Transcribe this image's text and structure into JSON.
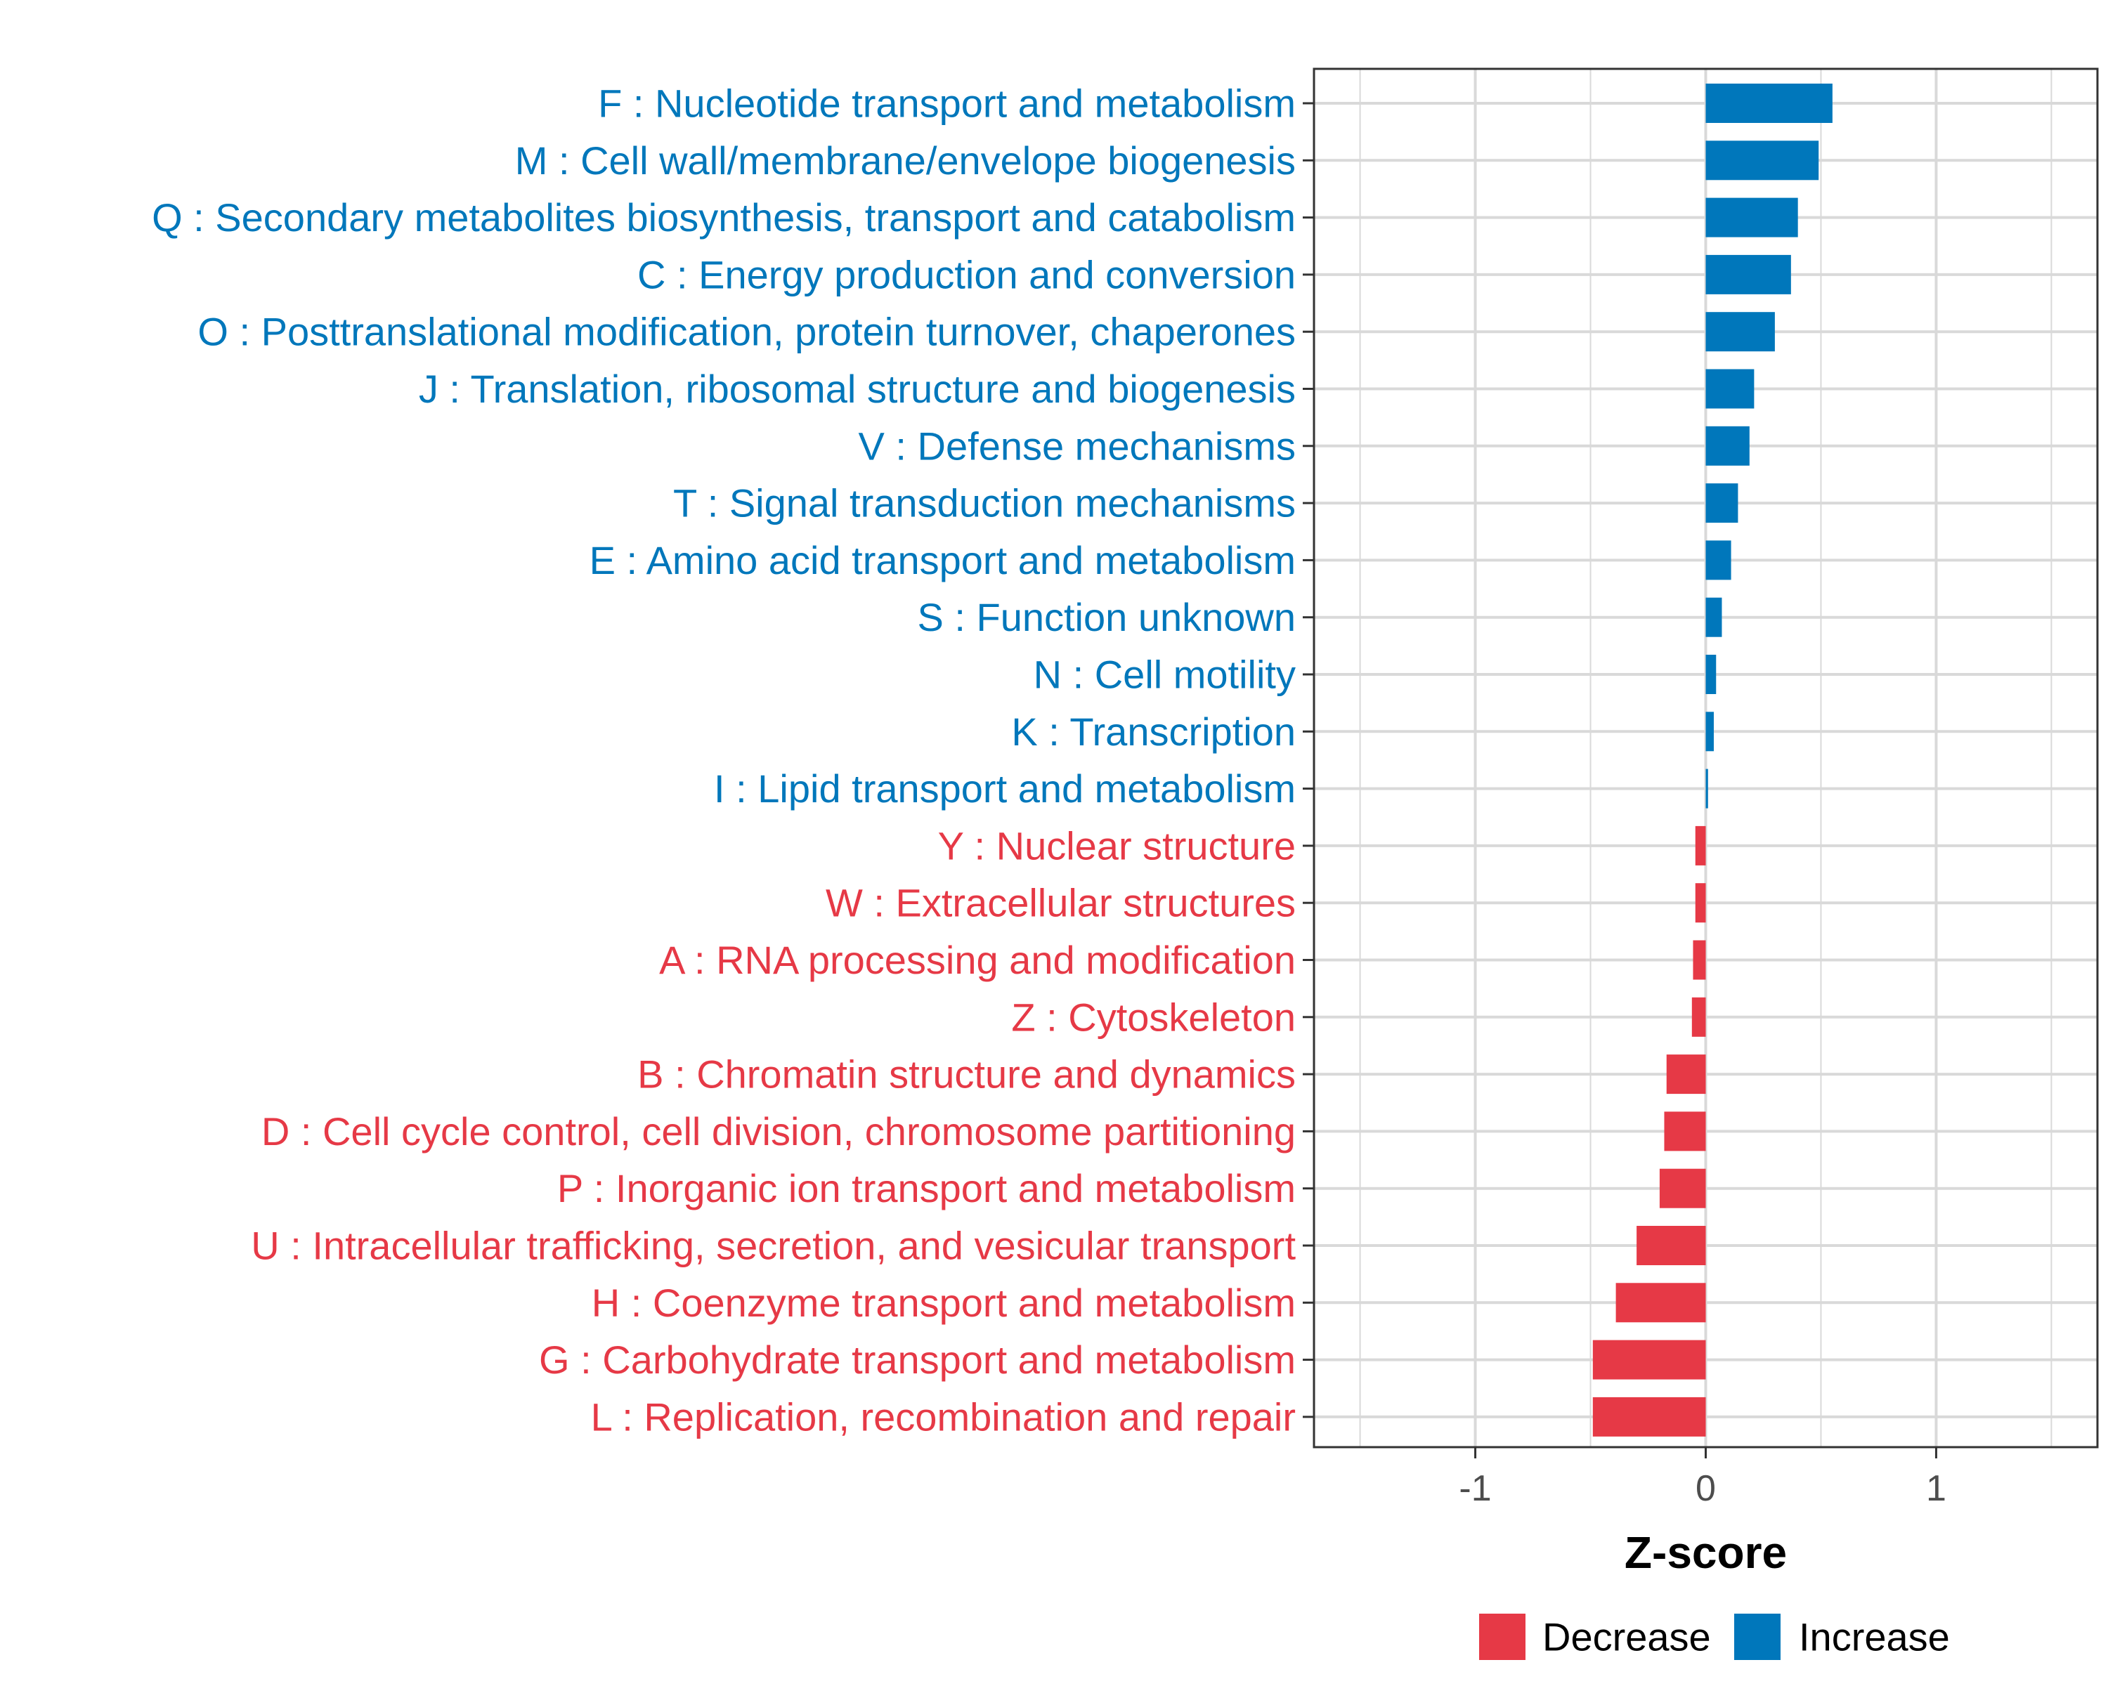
{
  "colors": {
    "increase": "#0077BB",
    "decrease": "#E63946",
    "grid": "#d9d9d9",
    "panel_border": "#333333",
    "tick_text": "#4d4d4d"
  },
  "chart_data": {
    "type": "bar",
    "orientation": "horizontal",
    "title": "",
    "xlabel": "Z-score",
    "ylabel": "",
    "xlim": [
      -1.7,
      1.7
    ],
    "xticks": [
      -1,
      0,
      1
    ],
    "xtick_labels": [
      "-1",
      "0",
      "1"
    ],
    "grid": true,
    "legend_position": "bottom",
    "legend": [
      {
        "key": "decrease",
        "label": "Decrease"
      },
      {
        "key": "increase",
        "label": "Increase"
      }
    ],
    "bars": [
      {
        "category": "F : Nucleotide transport and metabolism",
        "value": 0.55,
        "group": "increase"
      },
      {
        "category": "M : Cell wall/membrane/envelope biogenesis",
        "value": 0.49,
        "group": "increase"
      },
      {
        "category": "Q : Secondary metabolites biosynthesis, transport and catabolism",
        "value": 0.4,
        "group": "increase"
      },
      {
        "category": "C : Energy production and conversion",
        "value": 0.37,
        "group": "increase"
      },
      {
        "category": "O : Posttranslational modification, protein turnover, chaperones",
        "value": 0.3,
        "group": "increase"
      },
      {
        "category": "J : Translation, ribosomal structure and biogenesis",
        "value": 0.21,
        "group": "increase"
      },
      {
        "category": "V : Defense mechanisms",
        "value": 0.19,
        "group": "increase"
      },
      {
        "category": "T : Signal transduction mechanisms",
        "value": 0.14,
        "group": "increase"
      },
      {
        "category": "E : Amino acid transport and metabolism",
        "value": 0.11,
        "group": "increase"
      },
      {
        "category": "S : Function unknown",
        "value": 0.07,
        "group": "increase"
      },
      {
        "category": "N : Cell motility",
        "value": 0.045,
        "group": "increase"
      },
      {
        "category": "K : Transcription",
        "value": 0.035,
        "group": "increase"
      },
      {
        "category": "I : Lipid transport and metabolism",
        "value": 0.01,
        "group": "increase"
      },
      {
        "category": "Y : Nuclear structure",
        "value": -0.045,
        "group": "decrease"
      },
      {
        "category": "W : Extracellular structures",
        "value": -0.045,
        "group": "decrease"
      },
      {
        "category": "A : RNA processing and modification",
        "value": -0.055,
        "group": "decrease"
      },
      {
        "category": "Z : Cytoskeleton",
        "value": -0.06,
        "group": "decrease"
      },
      {
        "category": "B : Chromatin structure and dynamics",
        "value": -0.17,
        "group": "decrease"
      },
      {
        "category": "D : Cell cycle control, cell division, chromosome partitioning",
        "value": -0.18,
        "group": "decrease"
      },
      {
        "category": "P : Inorganic ion transport and metabolism",
        "value": -0.2,
        "group": "decrease"
      },
      {
        "category": "U : Intracellular trafficking, secretion, and vesicular transport",
        "value": -0.3,
        "group": "decrease"
      },
      {
        "category": "H : Coenzyme transport and metabolism",
        "value": -0.39,
        "group": "decrease"
      },
      {
        "category": "G : Carbohydrate transport and metabolism",
        "value": -0.49,
        "group": "decrease"
      },
      {
        "category": "L : Replication, recombination and repair",
        "value": -0.49,
        "group": "decrease"
      }
    ]
  }
}
